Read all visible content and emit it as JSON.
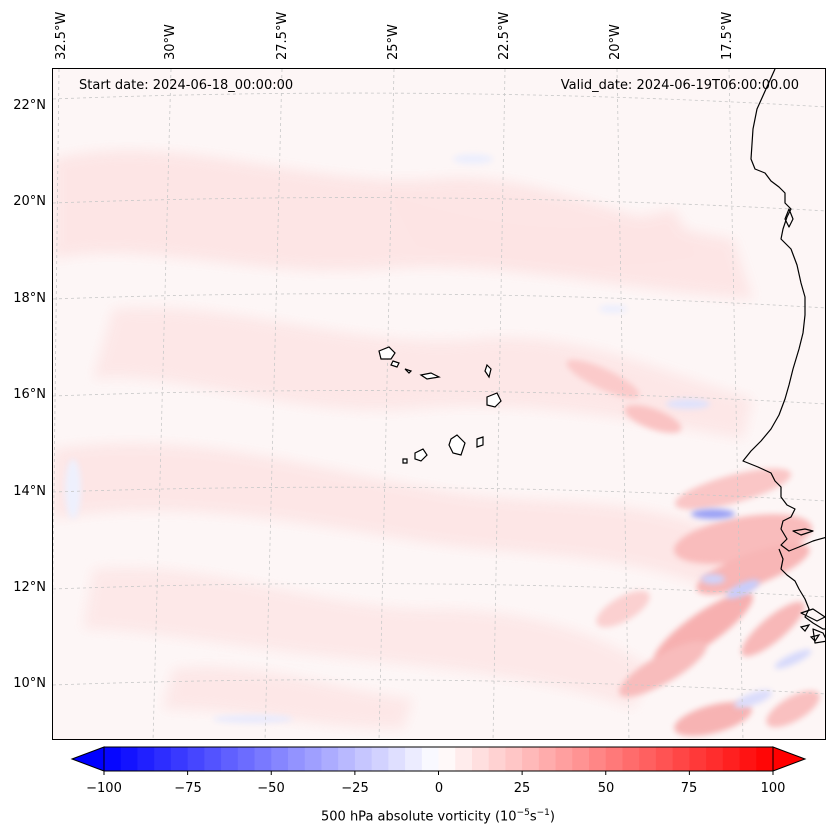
{
  "map": {
    "start_date": "Start date: 2024-06-18_00:00:00",
    "valid_date": "Valid_date: 2024-06-19T06:00:00.00",
    "lon_labels": [
      "32.5°W",
      "30°W",
      "27.5°W",
      "25°W",
      "22.5°W",
      "20°W",
      "17.5°W"
    ],
    "lat_labels": [
      "22°N",
      "20°N",
      "18°N",
      "16°N",
      "14°N",
      "12°N",
      "10°N"
    ]
  },
  "colorbar": {
    "ticks": [
      "−100",
      "−75",
      "−50",
      "−25",
      "0",
      "25",
      "50",
      "75",
      "100"
    ],
    "min": -100,
    "max": 100,
    "levels": 40,
    "label_prefix": "500 hPa absolute vorticity (10",
    "label_exp1": "−5",
    "label_mid": "s",
    "label_exp2": "−1",
    "label_suffix": ")",
    "neg_color": "#0000ff",
    "pos_color": "#ff0000"
  }
}
